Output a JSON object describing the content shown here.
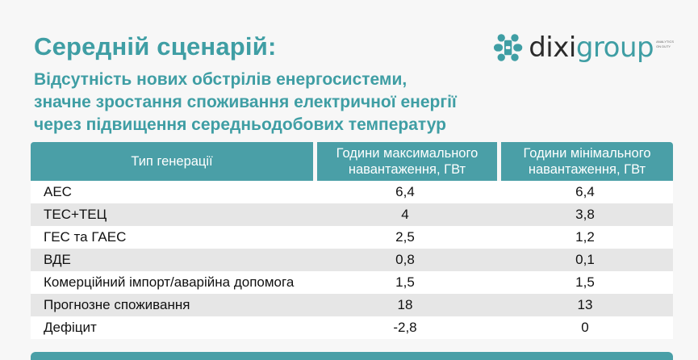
{
  "title": "Середній сценарій:",
  "subtitle_lines": [
    "Відсутність нових обстрілів енергосистеми,",
    "значне зростання споживання електричної енергії",
    "через підвищення середньодобових температур"
  ],
  "logo": {
    "text_plain": "dixi",
    "text_accent": "group",
    "tagline": "ANALYTICS ON DUTY",
    "icon": "dixigroup-logo-icon",
    "colors": {
      "accent": "#3f9ea4",
      "text": "#2b2b2b"
    }
  },
  "table": {
    "headers": [
      "Тип генерації",
      "Години максимального навантаження, ГВт",
      "Години мінімального навантаження, ГВт"
    ],
    "rows": [
      {
        "type": "АЕС",
        "max": "6,4",
        "min": "6,4"
      },
      {
        "type": "ТЕС+ТЕЦ",
        "max": "4",
        "min": "3,8"
      },
      {
        "type": "ГЕС та ГАЕС",
        "max": "2,5",
        "min": "1,2"
      },
      {
        "type": "ВДЕ",
        "max": "0,8",
        "min": "0,1"
      },
      {
        "type": "Комерційний імпорт/аварійна допомога",
        "max": "1,5",
        "min": "1,5"
      },
      {
        "type": "Прогнозне споживання",
        "max": "18",
        "min": "13"
      },
      {
        "type": "Дефіцит",
        "max": "-2,8",
        "min": "0"
      }
    ]
  },
  "colors": {
    "accent": "#3f9ea4",
    "header_bg": "#4a9fa7",
    "row_alt": "#e6e6e6",
    "background": "#f7f7f7"
  }
}
